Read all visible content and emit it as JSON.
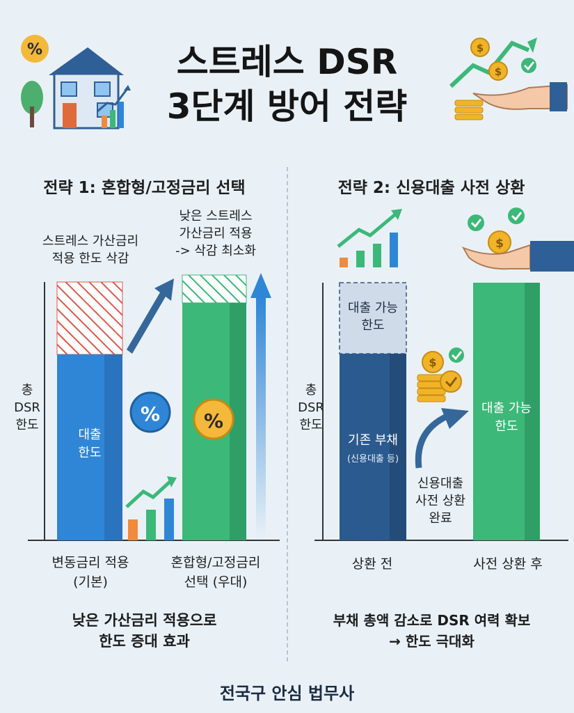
{
  "title": {
    "line1": "스트레스 DSR",
    "line2": "3단계 방어 전략"
  },
  "strategy1": {
    "heading": "전략 1: 혼합형/고정금리 선택",
    "annotation_left": [
      "스트레스 가산금리",
      "적용 한도 삭감"
    ],
    "annotation_right": [
      "낮은 스트레스",
      "가산금리 적용",
      "-> 삭감 최소화"
    ],
    "axis_label": [
      "총",
      "DSR",
      "한도"
    ],
    "bar1_label": [
      "대출",
      "한도"
    ],
    "bar1_caption": [
      "변동금리 적용",
      "(기본)"
    ],
    "bar2_caption": [
      "혼합형/고정금리",
      "선택 (우대)"
    ],
    "percent_symbol": "%",
    "summary": [
      "낮은 가산금리 적용으로",
      "한도 증대 효과"
    ]
  },
  "strategy2": {
    "heading": "전략 2: 신용대출 사전 상환",
    "axis_label": [
      "총",
      "DSR",
      "한도"
    ],
    "bar1_top_label": [
      "대출 가능",
      "한도"
    ],
    "bar1_bottom_label": "기존 부채",
    "bar1_bottom_sublabel": "(신용대출 등)",
    "arrow_caption": [
      "신용대출",
      "사전 상환",
      "완료"
    ],
    "bar2_label": [
      "대출 가능",
      "한도"
    ],
    "bar1_caption": "상환 전",
    "bar2_caption": "사전 상환 후",
    "summary": [
      "부채 총액 감소로 DSR 여력 확보",
      "→ 한도 극대화"
    ]
  },
  "footer": "전국구 안심 법무사",
  "colors": {
    "blue_bar": "#2f86d6",
    "green_bar": "#3cb878",
    "navy_bar": "#2b5a8f",
    "hatch_red": "#e0554a",
    "hatch_green": "#3cb878",
    "arrow_blue": "#35679b",
    "coin": "#f0b429"
  },
  "icons": [
    "percent-icon",
    "house-icon",
    "growth-chart-icon",
    "coin-hand-icon",
    "checkmark-icon",
    "coin-stack-icon",
    "up-arrow-icon"
  ]
}
